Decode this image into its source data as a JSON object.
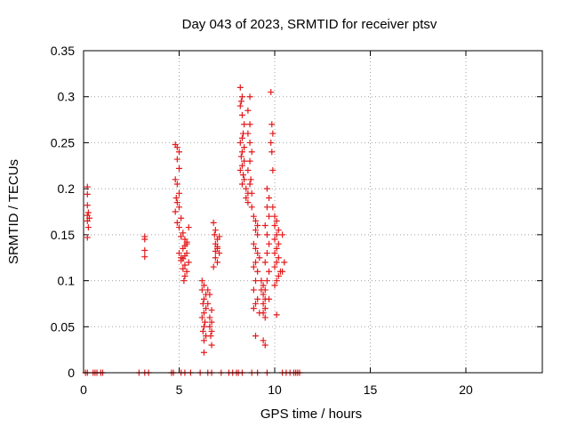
{
  "chart_data": {
    "type": "scatter",
    "title": "Day 043 of 2023, SRMTID for receiver ptsv",
    "xlabel": "GPS time / hours",
    "ylabel": "SRMTID / TECUs",
    "xlim": [
      0,
      24
    ],
    "ylim": [
      0,
      0.35
    ],
    "xticks": [
      0,
      5,
      10,
      15,
      20
    ],
    "xtick_labels": [
      "0",
      "5",
      "10",
      "15",
      "20"
    ],
    "yticks": [
      0,
      0.05,
      0.1,
      0.15,
      0.2,
      0.25,
      0.3,
      0.35
    ],
    "ytick_labels": [
      "0",
      "0.05",
      "0.1",
      "0.15",
      "0.2",
      "0.25",
      "0.3",
      "0.35"
    ],
    "grid": true,
    "marker": "plus",
    "series": [
      {
        "color": "#e31a1c",
        "points": [
          [
            0.1,
            0
          ],
          [
            0.2,
            0
          ],
          [
            0.5,
            0
          ],
          [
            0.6,
            0
          ],
          [
            0.7,
            0
          ],
          [
            0.9,
            0
          ],
          [
            1.0,
            0
          ],
          [
            2.9,
            0
          ],
          [
            3.2,
            0
          ],
          [
            3.4,
            0
          ],
          [
            4.6,
            0
          ],
          [
            4.7,
            0
          ],
          [
            5.1,
            0
          ],
          [
            5.3,
            0
          ],
          [
            5.6,
            0
          ],
          [
            6.1,
            0
          ],
          [
            6.5,
            0
          ],
          [
            6.7,
            0
          ],
          [
            7.2,
            0
          ],
          [
            7.6,
            0
          ],
          [
            7.8,
            0
          ],
          [
            8.0,
            0
          ],
          [
            8.1,
            0
          ],
          [
            8.3,
            0
          ],
          [
            8.8,
            0
          ],
          [
            9.1,
            0
          ],
          [
            9.6,
            0
          ],
          [
            10.4,
            0
          ],
          [
            10.6,
            0
          ],
          [
            10.8,
            0
          ],
          [
            11.0,
            0
          ],
          [
            11.1,
            0
          ],
          [
            11.2,
            0
          ],
          [
            11.3,
            0
          ],
          [
            0.2,
            0.202
          ],
          [
            0.2,
            0.194
          ],
          [
            0.2,
            0.182
          ],
          [
            0.25,
            0.174
          ],
          [
            0.2,
            0.171
          ],
          [
            0.3,
            0.168
          ],
          [
            0.2,
            0.165
          ],
          [
            0.25,
            0.158
          ],
          [
            0.2,
            0.147
          ],
          [
            3.2,
            0.148
          ],
          [
            3.2,
            0.145
          ],
          [
            3.2,
            0.133
          ],
          [
            3.2,
            0.126
          ],
          [
            4.8,
            0.248
          ],
          [
            4.9,
            0.245
          ],
          [
            5.0,
            0.24
          ],
          [
            4.9,
            0.232
          ],
          [
            5.0,
            0.222
          ],
          [
            4.8,
            0.21
          ],
          [
            4.9,
            0.205
          ],
          [
            5.0,
            0.195
          ],
          [
            4.85,
            0.19
          ],
          [
            4.9,
            0.185
          ],
          [
            5.0,
            0.18
          ],
          [
            4.8,
            0.175
          ],
          [
            5.1,
            0.168
          ],
          [
            4.9,
            0.163
          ],
          [
            5.0,
            0.158
          ],
          [
            5.2,
            0.152
          ],
          [
            5.1,
            0.148
          ],
          [
            5.3,
            0.145
          ],
          [
            5.4,
            0.142
          ],
          [
            5.3,
            0.138
          ],
          [
            5.2,
            0.135
          ],
          [
            5.4,
            0.13
          ],
          [
            5.3,
            0.127
          ],
          [
            5.2,
            0.124
          ],
          [
            5.1,
            0.122
          ],
          [
            5.5,
            0.12
          ],
          [
            5.3,
            0.117
          ],
          [
            5.2,
            0.113
          ],
          [
            5.4,
            0.11
          ],
          [
            5.3,
            0.105
          ],
          [
            5.25,
            0.1
          ],
          [
            5.1,
            0.125
          ],
          [
            5.0,
            0.13
          ],
          [
            5.5,
            0.158
          ],
          [
            5.4,
            0.14
          ],
          [
            6.2,
            0.1
          ],
          [
            6.3,
            0.095
          ],
          [
            6.2,
            0.09
          ],
          [
            6.4,
            0.085
          ],
          [
            6.3,
            0.08
          ],
          [
            6.25,
            0.075
          ],
          [
            6.4,
            0.07
          ],
          [
            6.3,
            0.065
          ],
          [
            6.2,
            0.06
          ],
          [
            6.35,
            0.055
          ],
          [
            6.3,
            0.05
          ],
          [
            6.25,
            0.045
          ],
          [
            6.4,
            0.04
          ],
          [
            6.3,
            0.035
          ],
          [
            6.3,
            0.022
          ],
          [
            6.5,
            0.09
          ],
          [
            6.6,
            0.085
          ],
          [
            6.5,
            0.075
          ],
          [
            6.7,
            0.068
          ],
          [
            6.6,
            0.06
          ],
          [
            6.7,
            0.055
          ],
          [
            6.6,
            0.05
          ],
          [
            6.7,
            0.045
          ],
          [
            6.65,
            0.04
          ],
          [
            6.7,
            0.03
          ],
          [
            6.8,
            0.163
          ],
          [
            6.9,
            0.155
          ],
          [
            6.85,
            0.15
          ],
          [
            7.0,
            0.145
          ],
          [
            6.9,
            0.14
          ],
          [
            7.0,
            0.135
          ],
          [
            7.1,
            0.13
          ],
          [
            6.9,
            0.125
          ],
          [
            7.0,
            0.12
          ],
          [
            6.8,
            0.115
          ],
          [
            7.1,
            0.148
          ],
          [
            7.0,
            0.137
          ],
          [
            6.9,
            0.132
          ],
          [
            8.2,
            0.31
          ],
          [
            8.3,
            0.3
          ],
          [
            8.25,
            0.295
          ],
          [
            8.2,
            0.29
          ],
          [
            8.3,
            0.28
          ],
          [
            8.4,
            0.27
          ],
          [
            8.35,
            0.26
          ],
          [
            8.3,
            0.255
          ],
          [
            8.2,
            0.25
          ],
          [
            8.4,
            0.245
          ],
          [
            8.3,
            0.24
          ],
          [
            8.25,
            0.235
          ],
          [
            8.4,
            0.23
          ],
          [
            8.3,
            0.225
          ],
          [
            8.2,
            0.22
          ],
          [
            8.35,
            0.215
          ],
          [
            8.4,
            0.21
          ],
          [
            8.3,
            0.205
          ],
          [
            8.5,
            0.2
          ],
          [
            8.6,
            0.195
          ],
          [
            8.5,
            0.19
          ],
          [
            8.6,
            0.185
          ],
          [
            8.7,
            0.3
          ],
          [
            8.6,
            0.285
          ],
          [
            8.7,
            0.27
          ],
          [
            8.6,
            0.26
          ],
          [
            8.7,
            0.25
          ],
          [
            8.8,
            0.24
          ],
          [
            8.7,
            0.23
          ],
          [
            8.6,
            0.22
          ],
          [
            8.75,
            0.21
          ],
          [
            8.7,
            0.205
          ],
          [
            8.8,
            0.195
          ],
          [
            8.8,
            0.18
          ],
          [
            8.9,
            0.17
          ],
          [
            9.0,
            0.165
          ],
          [
            9.1,
            0.16
          ],
          [
            9.0,
            0.155
          ],
          [
            9.1,
            0.15
          ],
          [
            8.9,
            0.14
          ],
          [
            9.0,
            0.135
          ],
          [
            9.1,
            0.13
          ],
          [
            9.2,
            0.125
          ],
          [
            9.0,
            0.12
          ],
          [
            8.9,
            0.115
          ],
          [
            9.1,
            0.11
          ],
          [
            9.0,
            0.1
          ],
          [
            8.9,
            0.09
          ],
          [
            9.1,
            0.08
          ],
          [
            9.0,
            0.075
          ],
          [
            8.9,
            0.07
          ],
          [
            9.2,
            0.065
          ],
          [
            9.0,
            0.04
          ],
          [
            9.3,
            0.1
          ],
          [
            9.4,
            0.095
          ],
          [
            9.3,
            0.09
          ],
          [
            9.4,
            0.085
          ],
          [
            9.5,
            0.08
          ],
          [
            9.4,
            0.075
          ],
          [
            9.5,
            0.07
          ],
          [
            9.4,
            0.065
          ],
          [
            9.5,
            0.06
          ],
          [
            9.4,
            0.035
          ],
          [
            9.5,
            0.03
          ],
          [
            9.6,
            0.2
          ],
          [
            9.7,
            0.19
          ],
          [
            9.6,
            0.18
          ],
          [
            9.7,
            0.17
          ],
          [
            9.5,
            0.16
          ],
          [
            9.6,
            0.15
          ],
          [
            9.7,
            0.14
          ],
          [
            9.6,
            0.13
          ],
          [
            9.5,
            0.12
          ],
          [
            9.7,
            0.11
          ],
          [
            9.6,
            0.1
          ],
          [
            9.5,
            0.09
          ],
          [
            9.7,
            0.08
          ],
          [
            9.8,
            0.305
          ],
          [
            9.85,
            0.27
          ],
          [
            9.9,
            0.26
          ],
          [
            9.8,
            0.25
          ],
          [
            9.85,
            0.24
          ],
          [
            9.9,
            0.22
          ],
          [
            9.9,
            0.18
          ],
          [
            10.0,
            0.17
          ],
          [
            10.1,
            0.165
          ],
          [
            10.0,
            0.16
          ],
          [
            10.2,
            0.155
          ],
          [
            10.1,
            0.15
          ],
          [
            10.0,
            0.145
          ],
          [
            10.2,
            0.14
          ],
          [
            10.1,
            0.135
          ],
          [
            10.0,
            0.13
          ],
          [
            10.2,
            0.125
          ],
          [
            10.1,
            0.12
          ],
          [
            10.0,
            0.115
          ],
          [
            10.3,
            0.11
          ],
          [
            10.2,
            0.105
          ],
          [
            10.1,
            0.1
          ],
          [
            10.0,
            0.095
          ],
          [
            10.1,
            0.063
          ],
          [
            10.4,
            0.15
          ],
          [
            10.5,
            0.12
          ],
          [
            10.4,
            0.11
          ]
        ]
      }
    ]
  }
}
